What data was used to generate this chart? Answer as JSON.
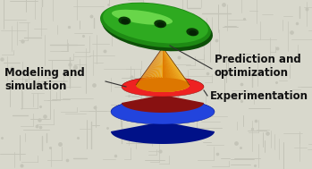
{
  "bg_color": "#d8d8cc",
  "circuit_color": "#c4c4b8",
  "bacterium_green_dark": "#1a7a10",
  "bacterium_green_main": "#2eaa20",
  "bacterium_green_light": "#55cc40",
  "bacterium_green_highlight": "#88ee60",
  "cone_yellow": "#ffcc30",
  "cone_orange": "#dd7700",
  "cone_dark": "#994400",
  "red_top": "#ee2222",
  "red_mid": "#cc1111",
  "red_dark": "#881111",
  "blue_top": "#2244dd",
  "blue_mid": "#1133bb",
  "blue_dark": "#001188",
  "text_color": "#111111",
  "line_color": "#333333",
  "label_prediction": "Prediction and\noptimization",
  "label_modeling": "Modeling and\nsimulation",
  "label_experiment": "Experimentation",
  "fontsize": 8.5,
  "fig_width": 3.49,
  "fig_height": 1.89
}
